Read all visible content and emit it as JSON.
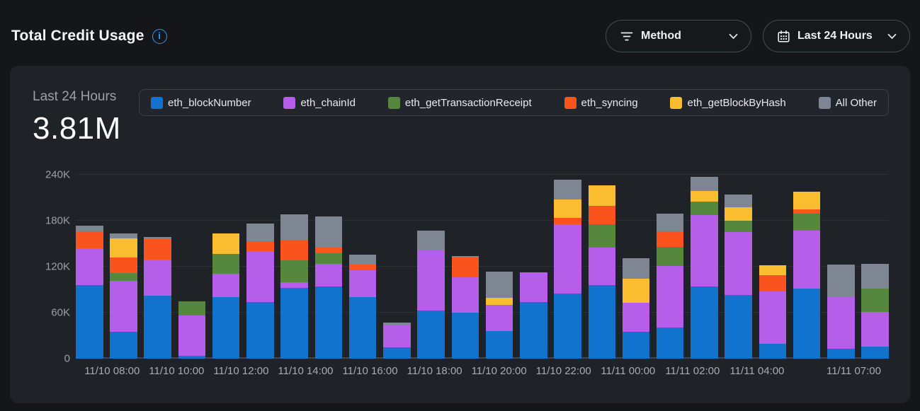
{
  "header": {
    "title": "Total Credit Usage",
    "method_dropdown": {
      "label": "Method"
    },
    "time_dropdown": {
      "label": "Last 24 Hours"
    }
  },
  "stats": {
    "period_label": "Last 24 Hours",
    "total_value": "3.81M"
  },
  "icons": {
    "info": "info-icon",
    "info_glyph": "i",
    "filter": "filter-icon",
    "calendar": "calendar-icon",
    "chevron": "chevron-down-icon"
  },
  "colors": {
    "page_bg": "#141619",
    "card_bg": "#1f2227",
    "accent_blue": "#2d9cf4",
    "axis_text": "#9aa1a8"
  },
  "chart_data": {
    "type": "stacked-bar",
    "values_unit": "thousands of credits (K)",
    "title": "Total Credit Usage — Last 24 Hours",
    "ylim": [
      0,
      240
    ],
    "grid": "horizontal",
    "legend_position": "top",
    "yticks": [
      {
        "label": "0",
        "value": 0
      },
      {
        "label": "60K",
        "value": 60
      },
      {
        "label": "120K",
        "value": 120
      },
      {
        "label": "180K",
        "value": 180
      },
      {
        "label": "240K",
        "value": 240
      }
    ],
    "x_tick_labels": [
      "11/10 08:00",
      "",
      "11/10 10:00",
      "",
      "11/10 12:00",
      "",
      "11/10 14:00",
      "",
      "11/10 16:00",
      "",
      "11/10 18:00",
      "",
      "11/10 20:00",
      "",
      "11/10 22:00",
      "",
      "11/11 00:00",
      "",
      "11/11 02:00",
      "",
      "11/11 04:00",
      "",
      "",
      "11/11 07:00"
    ],
    "series": [
      {
        "name": "eth_blockNumber",
        "color": "#1173cd",
        "values": [
          96,
          35,
          82,
          4,
          80,
          74,
          92,
          94,
          80,
          15,
          63,
          60,
          36,
          74,
          85,
          96,
          35,
          41,
          94,
          83,
          19,
          91,
          13,
          16
        ]
      },
      {
        "name": "eth_chainId",
        "color": "#b45eea",
        "values": [
          48,
          67,
          47,
          52,
          31,
          66,
          8,
          30,
          35,
          29,
          78,
          46,
          34,
          39,
          90,
          49,
          38,
          80,
          93,
          82,
          69,
          76,
          68,
          45
        ]
      },
      {
        "name": "eth_getTransactionReceipt",
        "color": "#55883e",
        "values": [
          0,
          10,
          0,
          19,
          26,
          0,
          28,
          14,
          0,
          0,
          0,
          0,
          0,
          0,
          0,
          30,
          0,
          25,
          18,
          15,
          0,
          22,
          0,
          30
        ]
      },
      {
        "name": "eth_syncing",
        "color": "#fb531e",
        "values": [
          22,
          20,
          27,
          0,
          0,
          13,
          27,
          7,
          8,
          0,
          0,
          26,
          0,
          0,
          9,
          24,
          0,
          20,
          0,
          0,
          21,
          6,
          0,
          0
        ]
      },
      {
        "name": "eth_getBlockByHash",
        "color": "#f9bd2f",
        "values": [
          0,
          25,
          0,
          0,
          26,
          0,
          0,
          0,
          0,
          0,
          0,
          0,
          9,
          0,
          24,
          27,
          31,
          0,
          14,
          18,
          13,
          23,
          0,
          0
        ]
      },
      {
        "name": "All Other",
        "color": "#7e8694",
        "values": [
          8,
          6,
          3,
          0,
          0,
          23,
          33,
          41,
          13,
          3,
          26,
          2,
          35,
          0,
          26,
          0,
          27,
          23,
          18,
          16,
          0,
          0,
          42,
          33
        ]
      }
    ]
  }
}
